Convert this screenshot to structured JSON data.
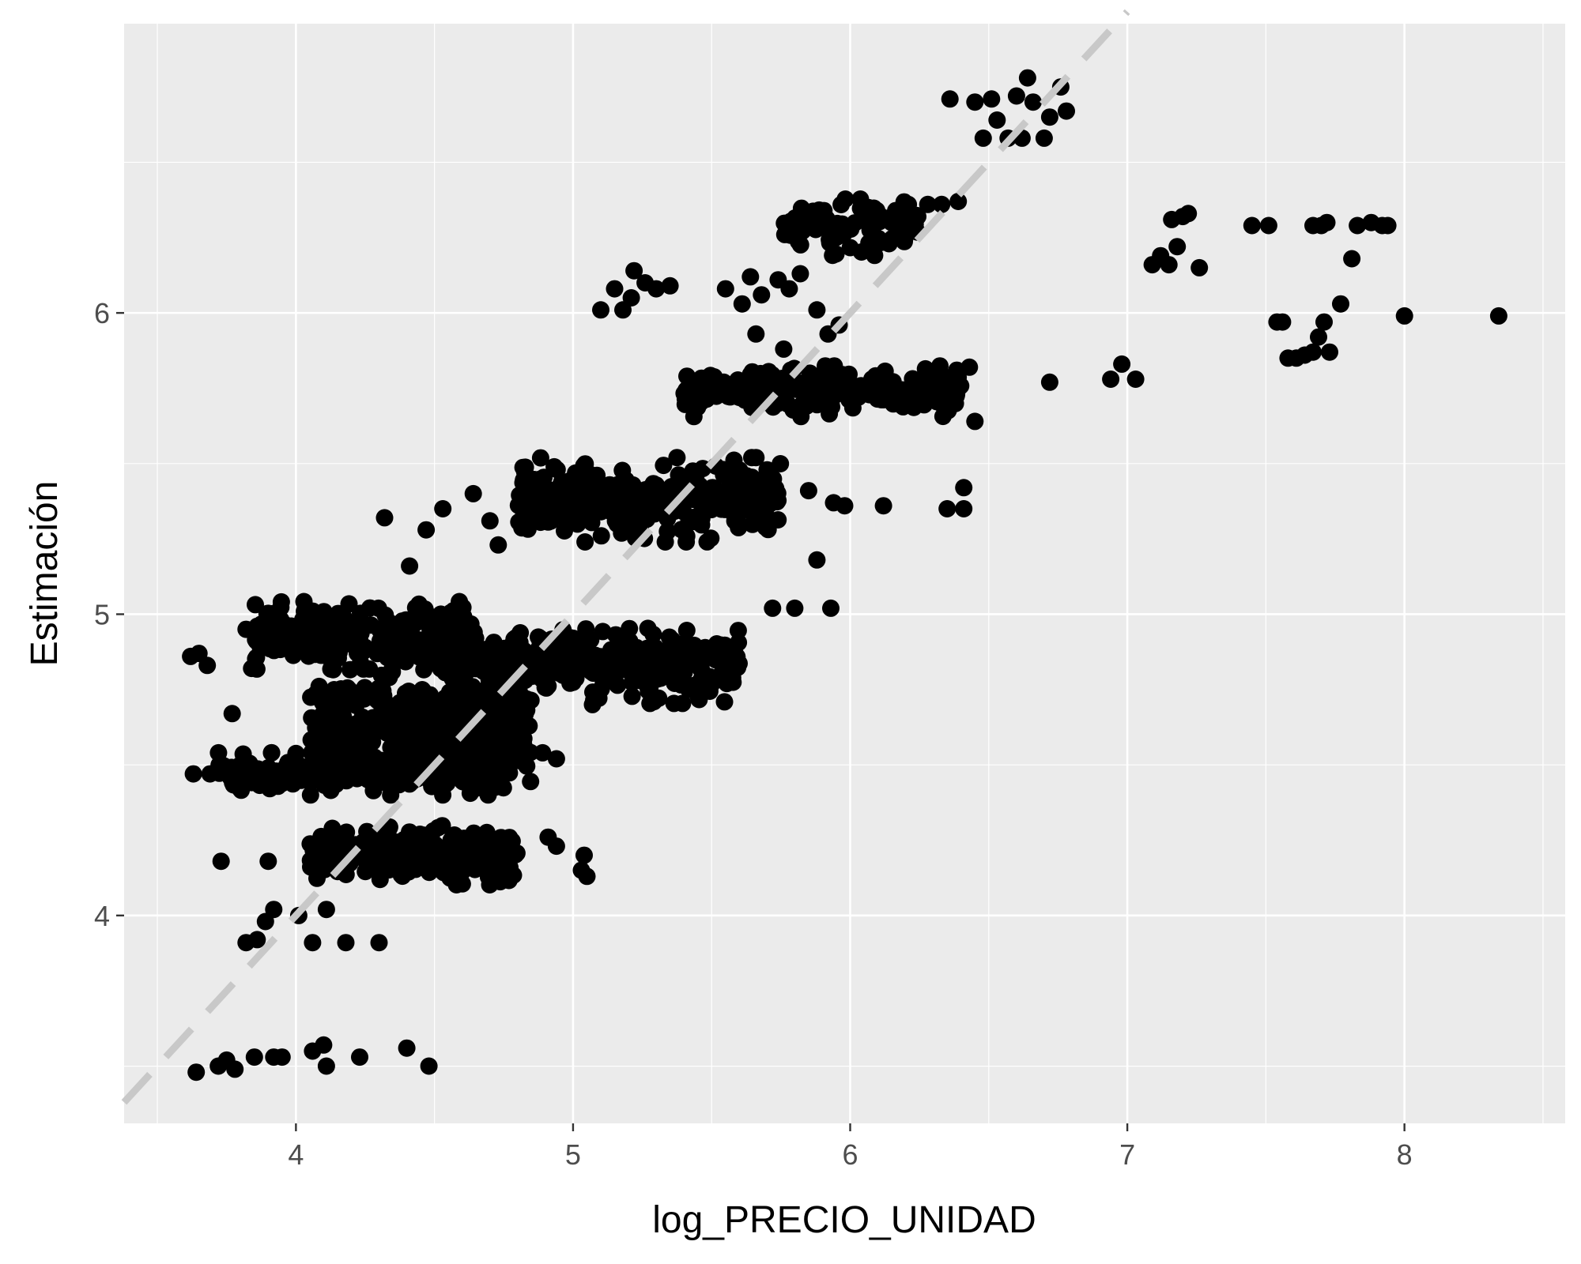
{
  "chart_data": {
    "type": "scatter",
    "title": "",
    "xlabel": "log_PRECIO_UNIDAD",
    "ylabel": "Estimación",
    "xlim": [
      3.38,
      8.58
    ],
    "ylim": [
      3.31,
      6.96
    ],
    "x_ticks": [
      4,
      5,
      6,
      7,
      8
    ],
    "x_tick_labels": [
      "4",
      "5",
      "6",
      "7",
      "8"
    ],
    "y_ticks": [
      4,
      5,
      6
    ],
    "y_tick_labels": [
      "4",
      "5",
      "6"
    ],
    "grid": true,
    "legend": "none",
    "reference_line": {
      "style": "dashed",
      "from": [
        3.38,
        3.38
      ],
      "to": [
        7.0,
        7.0
      ]
    },
    "clusters": [
      {
        "x_min": 3.85,
        "x_max": 4.65,
        "y_center": 4.93,
        "y_spread": 0.08,
        "count": 260
      },
      {
        "x_min": 3.72,
        "x_max": 4.75,
        "y_center": 4.47,
        "y_spread": 0.05,
        "count": 220
      },
      {
        "x_min": 4.05,
        "x_max": 4.85,
        "y_center": 4.62,
        "y_spread": 0.14,
        "count": 380
      },
      {
        "x_min": 4.05,
        "x_max": 4.8,
        "y_center": 4.2,
        "y_spread": 0.07,
        "count": 260
      },
      {
        "x_min": 4.55,
        "x_max": 5.6,
        "y_center": 4.83,
        "y_spread": 0.09,
        "count": 330
      },
      {
        "x_min": 4.8,
        "x_max": 5.75,
        "y_center": 5.38,
        "y_spread": 0.1,
        "count": 320
      },
      {
        "x_min": 5.4,
        "x_max": 6.4,
        "y_center": 5.74,
        "y_spread": 0.06,
        "count": 260
      },
      {
        "x_min": 5.75,
        "x_max": 6.25,
        "y_center": 6.28,
        "y_spread": 0.07,
        "count": 90
      }
    ],
    "points": [
      [
        3.62,
        4.86
      ],
      [
        3.65,
        4.87
      ],
      [
        3.68,
        4.83
      ],
      [
        3.63,
        4.47
      ],
      [
        3.69,
        4.47
      ],
      [
        3.73,
        4.18
      ],
      [
        3.77,
        4.67
      ],
      [
        3.8,
        4.5
      ],
      [
        3.82,
        4.95
      ],
      [
        3.84,
        4.82
      ],
      [
        3.82,
        3.91
      ],
      [
        3.86,
        3.92
      ],
      [
        3.89,
        3.98
      ],
      [
        3.92,
        4.02
      ],
      [
        3.9,
        4.18
      ],
      [
        4.01,
        4.0
      ],
      [
        4.06,
        3.91
      ],
      [
        4.11,
        4.02
      ],
      [
        4.18,
        3.91
      ],
      [
        4.3,
        3.91
      ],
      [
        3.64,
        3.48
      ],
      [
        3.72,
        3.5
      ],
      [
        3.75,
        3.52
      ],
      [
        3.78,
        3.49
      ],
      [
        3.85,
        3.53
      ],
      [
        3.92,
        3.53
      ],
      [
        3.95,
        3.53
      ],
      [
        4.06,
        3.55
      ],
      [
        4.1,
        3.57
      ],
      [
        4.11,
        3.5
      ],
      [
        4.23,
        3.53
      ],
      [
        4.4,
        3.56
      ],
      [
        4.48,
        3.5
      ],
      [
        4.05,
        5.0
      ],
      [
        4.32,
        5.32
      ],
      [
        4.41,
        5.16
      ],
      [
        4.47,
        5.28
      ],
      [
        4.53,
        5.35
      ],
      [
        4.64,
        5.4
      ],
      [
        4.7,
        5.31
      ],
      [
        4.73,
        5.23
      ],
      [
        4.91,
        4.26
      ],
      [
        4.94,
        4.23
      ],
      [
        5.03,
        4.15
      ],
      [
        5.05,
        4.13
      ],
      [
        5.04,
        4.2
      ],
      [
        4.89,
        4.54
      ],
      [
        4.94,
        4.52
      ],
      [
        5.07,
        4.7
      ],
      [
        5.1,
        6.01
      ],
      [
        5.15,
        6.08
      ],
      [
        5.18,
        6.01
      ],
      [
        5.21,
        6.05
      ],
      [
        5.22,
        6.14
      ],
      [
        5.26,
        6.1
      ],
      [
        5.3,
        6.08
      ],
      [
        5.35,
        6.09
      ],
      [
        5.55,
        6.08
      ],
      [
        5.61,
        6.03
      ],
      [
        5.64,
        6.12
      ],
      [
        5.68,
        6.06
      ],
      [
        5.74,
        6.11
      ],
      [
        5.78,
        6.08
      ],
      [
        5.82,
        6.13
      ],
      [
        5.88,
        6.01
      ],
      [
        5.66,
        5.93
      ],
      [
        5.76,
        5.88
      ],
      [
        5.92,
        5.93
      ],
      [
        5.96,
        5.96
      ],
      [
        5.72,
        5.02
      ],
      [
        5.8,
        5.02
      ],
      [
        5.93,
        5.02
      ],
      [
        5.98,
        5.36
      ],
      [
        6.12,
        5.36
      ],
      [
        6.35,
        5.35
      ],
      [
        6.41,
        5.35
      ],
      [
        6.41,
        5.42
      ],
      [
        6.45,
        5.64
      ],
      [
        6.43,
        5.82
      ],
      [
        5.94,
        5.37
      ],
      [
        5.85,
        5.41
      ],
      [
        5.88,
        5.18
      ],
      [
        6.36,
        6.71
      ],
      [
        6.45,
        6.7
      ],
      [
        6.51,
        6.71
      ],
      [
        6.48,
        6.58
      ],
      [
        6.53,
        6.64
      ],
      [
        6.57,
        6.58
      ],
      [
        6.62,
        6.58
      ],
      [
        6.6,
        6.72
      ],
      [
        6.64,
        6.78
      ],
      [
        6.66,
        6.7
      ],
      [
        6.7,
        6.58
      ],
      [
        6.76,
        6.75
      ],
      [
        6.78,
        6.67
      ],
      [
        6.72,
        6.65
      ],
      [
        6.21,
        6.36
      ],
      [
        6.28,
        6.36
      ],
      [
        6.33,
        6.36
      ],
      [
        6.39,
        6.37
      ],
      [
        6.72,
        5.77
      ],
      [
        6.94,
        5.78
      ],
      [
        6.98,
        5.83
      ],
      [
        7.03,
        5.78
      ],
      [
        7.09,
        6.16
      ],
      [
        7.12,
        6.19
      ],
      [
        7.15,
        6.16
      ],
      [
        7.18,
        6.22
      ],
      [
        7.2,
        6.32
      ],
      [
        7.22,
        6.33
      ],
      [
        7.26,
        6.15
      ],
      [
        7.16,
        6.31
      ],
      [
        7.45,
        6.29
      ],
      [
        7.51,
        6.29
      ],
      [
        7.67,
        6.29
      ],
      [
        7.7,
        6.29
      ],
      [
        7.72,
        6.3
      ],
      [
        7.83,
        6.29
      ],
      [
        7.88,
        6.3
      ],
      [
        7.92,
        6.29
      ],
      [
        7.94,
        6.29
      ],
      [
        7.54,
        5.97
      ],
      [
        7.56,
        5.97
      ],
      [
        7.58,
        5.85
      ],
      [
        7.61,
        5.85
      ],
      [
        7.64,
        5.86
      ],
      [
        7.67,
        5.87
      ],
      [
        7.69,
        5.92
      ],
      [
        7.71,
        5.97
      ],
      [
        7.73,
        5.87
      ],
      [
        7.77,
        6.03
      ],
      [
        7.81,
        6.18
      ],
      [
        8.0,
        5.99
      ],
      [
        8.34,
        5.99
      ]
    ]
  }
}
